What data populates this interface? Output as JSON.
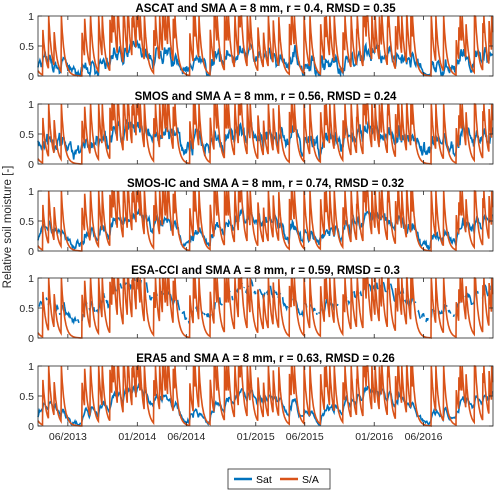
{
  "figure": {
    "ylabel": "Relative soil moisture [-]",
    "x_tick_labels": [
      "06/2013",
      "01/2014",
      "06/2014",
      "01/2015",
      "06/2015",
      "01/2016",
      "06/2016"
    ],
    "y_tick_labels": [
      "0",
      "0.5",
      "1"
    ],
    "legend": [
      {
        "name": "Sat",
        "color": "#0072BD"
      },
      {
        "name": "S/A",
        "color": "#D95319"
      }
    ]
  },
  "chart_data": {
    "type": "line",
    "x_range": [
      "2013-03-01",
      "2017-01-01"
    ],
    "ylim": [
      0,
      1
    ],
    "grid": false,
    "legend_position": "bottom-center",
    "panels": [
      {
        "title": "ASCAT and SMA A = 8 mm, r = 0.4, RMSD = 0.35",
        "sat_base": 0.12,
        "sat_amp": 0.15,
        "sat_noise": 0.14,
        "sat_gap": 0.0,
        "seed": 3
      },
      {
        "title": "SMOS and SMA A = 8 mm, r = 0.56, RMSD = 0.24",
        "sat_base": 0.32,
        "sat_amp": 0.12,
        "sat_noise": 0.16,
        "sat_gap": 0.0,
        "seed": 7
      },
      {
        "title": "SMOS-IC and SMA A = 8 mm, r = 0.74, RMSD = 0.32",
        "sat_base": 0.18,
        "sat_amp": 0.28,
        "sat_noise": 0.1,
        "sat_gap": 0.0,
        "seed": 11
      },
      {
        "title": "ESA-CCI and SMA A = 8 mm, r = 0.59, RMSD = 0.3",
        "sat_base": 0.4,
        "sat_amp": 0.35,
        "sat_noise": 0.08,
        "sat_gap": 0.25,
        "seed": 17
      },
      {
        "title": "ERA5 and SMA A = 8 mm, r = 0.63, RMSD = 0.26",
        "sat_base": 0.14,
        "sat_amp": 0.3,
        "sat_noise": 0.05,
        "sat_gap": 0.0,
        "seed": 23
      }
    ]
  }
}
